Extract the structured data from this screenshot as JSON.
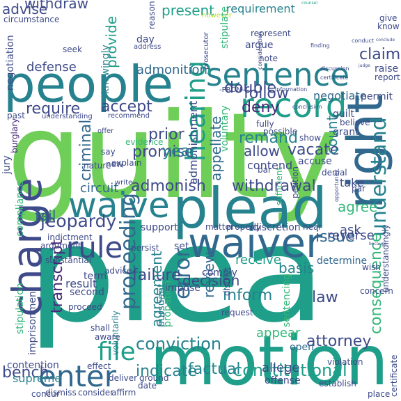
{
  "word_cloud": {
    "palette": {
      "background": "#ffffff",
      "yellow_green": "#b5de2b",
      "light_green": "#6ece58",
      "mid_green": "#35b779",
      "teal": "#1f9e89",
      "blue_teal": "#26828e",
      "steel_blue": "#31688e",
      "indigo": "#3e4a89",
      "deep_purple": "#482878",
      "dark_purple": "#440154",
      "yellow": "#dde318"
    },
    "words": [
      {
        "text": "plea",
        "color": "#1f9e89"
      },
      {
        "text": "guilty",
        "color": "#6ece58"
      },
      {
        "text": "withdraw",
        "color": "#3e4a89"
      },
      {
        "text": "motion",
        "color": "#1f9e89"
      },
      {
        "text": "plead",
        "color": "#26828e"
      },
      {
        "text": "people",
        "color": "#26828e"
      },
      {
        "text": "right",
        "color": "#31688e"
      },
      {
        "text": "waiver",
        "color": "#31688e"
      },
      {
        "text": "charge",
        "color": "#3e4a89"
      },
      {
        "text": "sentence",
        "color": "#26828e"
      },
      {
        "text": "record",
        "color": "#1f9e89"
      },
      {
        "text": "waive",
        "color": "#26828e"
      },
      {
        "text": "counsel",
        "color": "#1f9e89"
      },
      {
        "text": "rule",
        "color": "#3e4a89"
      },
      {
        "text": "enter",
        "color": "#31688e"
      },
      {
        "text": "file",
        "color": "#1f9e89"
      },
      {
        "text": "hearing",
        "color": "#1f9e89"
      },
      {
        "text": "understand",
        "color": "#26828e"
      },
      {
        "text": "consequence",
        "color": "#35b779"
      },
      {
        "text": "conviction",
        "color": "#26828e"
      },
      {
        "text": "jeopardy",
        "color": "#3e4a89"
      },
      {
        "text": "proceeding",
        "color": "#31688e"
      },
      {
        "text": "admonish",
        "color": "#3e4a89"
      },
      {
        "text": "withdrawal",
        "color": "#3e4a89"
      },
      {
        "text": "error",
        "color": "#31688e"
      },
      {
        "text": "attorney",
        "color": "#3e4a89"
      },
      {
        "text": "constitutional",
        "color": "#1f9e89"
      },
      {
        "text": "factual",
        "color": "#26828e"
      },
      {
        "text": "indicate",
        "color": "#26828e"
      },
      {
        "text": "bench",
        "color": "#3e4a89"
      },
      {
        "text": "decision",
        "color": "#3e4a89"
      },
      {
        "text": "transcript",
        "color": "#482878"
      },
      {
        "text": "double",
        "color": "#3e4a89"
      },
      {
        "text": "judge",
        "color": "#3e4a89"
      },
      {
        "text": "claim",
        "color": "#3e4a89"
      },
      {
        "text": "defense",
        "color": "#3e4a89"
      },
      {
        "text": "require",
        "color": "#3e4a89"
      },
      {
        "text": "accept",
        "color": "#3e4a89"
      },
      {
        "text": "deny",
        "color": "#482878"
      },
      {
        "text": "follow",
        "color": "#3e4a89"
      },
      {
        "text": "allow",
        "color": "#3e4a89"
      },
      {
        "text": "remand",
        "color": "#26828e"
      },
      {
        "text": "vacate",
        "color": "#3e4a89"
      },
      {
        "text": "agree",
        "color": "#35b779"
      },
      {
        "text": "appellate",
        "color": "#31688e"
      },
      {
        "text": "advise",
        "color": "#3e4a89"
      },
      {
        "text": "present",
        "color": "#1f9e89"
      },
      {
        "text": "admonition",
        "color": "#31688e"
      },
      {
        "text": "admonishment",
        "color": "#3e4a89"
      },
      {
        "text": "promise",
        "color": "#3e4a89"
      },
      {
        "text": "prior",
        "color": "#3e4a89"
      },
      {
        "text": "year",
        "color": "#26828e"
      },
      {
        "text": "criminal",
        "color": "#31688e"
      },
      {
        "text": "circuit",
        "color": "#31688e"
      },
      {
        "text": "fail",
        "color": "#31688e"
      },
      {
        "text": "failure",
        "color": "#3e4a89"
      },
      {
        "text": "issue",
        "color": "#31688e"
      },
      {
        "text": "agreement",
        "color": "#26828e"
      },
      {
        "text": "review",
        "color": "#31688e"
      },
      {
        "text": "inform",
        "color": "#26828e"
      },
      {
        "text": "receive",
        "color": "#1f9e89"
      },
      {
        "text": "basis",
        "color": "#26828e"
      },
      {
        "text": "law",
        "color": "#3e4a89"
      },
      {
        "text": "reverse",
        "color": "#3e4a89"
      },
      {
        "text": "determine",
        "color": "#31688e"
      },
      {
        "text": "ask",
        "color": "#3e4a89"
      },
      {
        "text": "count",
        "color": "#26828e"
      },
      {
        "text": "voluntary",
        "color": "#35b779"
      },
      {
        "text": "provide",
        "color": "#1f9e89"
      },
      {
        "text": "requirement",
        "color": "#26828e"
      },
      {
        "text": "negotiate",
        "color": "#31688e"
      },
      {
        "text": "certificate",
        "color": "#3e4a89"
      },
      {
        "text": "sentencing",
        "color": "#35b779"
      },
      {
        "text": "pursuant",
        "color": "#26828e"
      },
      {
        "text": "probation",
        "color": "#35b779"
      },
      {
        "text": "appear",
        "color": "#35b779"
      },
      {
        "text": "allege",
        "color": "#3e4a89"
      },
      {
        "text": "offense",
        "color": "#3e4a89"
      },
      {
        "text": "open",
        "color": "#31688e"
      },
      {
        "text": "result",
        "color": "#3e4a89"
      },
      {
        "text": "term",
        "color": "#3e4a89"
      },
      {
        "text": "second",
        "color": "#3e4a89"
      },
      {
        "text": "supreme",
        "color": "#26828e"
      },
      {
        "text": "contention",
        "color": "#3e4a89"
      },
      {
        "text": "stipulation",
        "color": "#35b779"
      },
      {
        "text": "compliance",
        "color": "#35b779"
      },
      {
        "text": "indictment",
        "color": "#3e4a89"
      },
      {
        "text": "jury",
        "color": "#3e4a89"
      },
      {
        "text": "burglary",
        "color": "#482878"
      },
      {
        "text": "negotiation",
        "color": "#3e4a89"
      },
      {
        "text": "circumstance",
        "color": "#3e4a89"
      },
      {
        "text": "knowingly",
        "color": "#26828e"
      },
      {
        "text": "imprisonment",
        "color": "#3e4a89"
      },
      {
        "text": "dismiss",
        "color": "#3e4a89"
      },
      {
        "text": "consider",
        "color": "#3e4a89"
      },
      {
        "text": "affirm",
        "color": "#3e4a89"
      },
      {
        "text": "deliver",
        "color": "#3e4a89"
      },
      {
        "text": "ground",
        "color": "#3e4a89"
      },
      {
        "text": "impose",
        "color": "#3e4a89"
      },
      {
        "text": "comply",
        "color": "#3e4a89"
      },
      {
        "text": "shall",
        "color": "#3e4a89"
      },
      {
        "text": "aware",
        "color": "#3e4a89"
      },
      {
        "text": "voluntarily",
        "color": "#26828e"
      },
      {
        "text": "effect",
        "color": "#3e4a89"
      },
      {
        "text": "date",
        "color": "#3e4a89"
      },
      {
        "text": "place",
        "color": "#3e4a89"
      },
      {
        "text": "establish",
        "color": "#3e4a89"
      },
      {
        "text": "violation",
        "color": "#3e4a89"
      },
      {
        "text": "request",
        "color": "#3e4a89"
      },
      {
        "text": "district",
        "color": "#3e4a89"
      },
      {
        "text": "proceed",
        "color": "#3e4a89"
      },
      {
        "text": "advice",
        "color": "#3e4a89"
      },
      {
        "text": "substantial",
        "color": "#3e4a89"
      },
      {
        "text": "argument",
        "color": "#3e4a89"
      },
      {
        "text": "persist",
        "color": "#3e4a89"
      },
      {
        "text": "set",
        "color": "#3e4a89"
      },
      {
        "text": "matter",
        "color": "#3e4a89"
      },
      {
        "text": "properly",
        "color": "#3e4a89"
      },
      {
        "text": "discretion",
        "color": "#3e4a89"
      },
      {
        "text": "support",
        "color": "#3e4a89"
      },
      {
        "text": "sufficient",
        "color": "#35b779"
      },
      {
        "text": "petition",
        "color": "#3e4a89"
      },
      {
        "text": "hear",
        "color": "#3e4a89"
      },
      {
        "text": "denial",
        "color": "#3e4a89"
      },
      {
        "text": "take",
        "color": "#3e4a89"
      },
      {
        "text": "par",
        "color": "#3e4a89"
      },
      {
        "text": "because",
        "color": "#3e4a89"
      },
      {
        "text": "wish",
        "color": "#3e4a89"
      },
      {
        "text": "concern",
        "color": "#3e4a89"
      },
      {
        "text": "understandingly",
        "color": "#3e4a89"
      },
      {
        "text": "contend",
        "color": "#3e4a89"
      },
      {
        "text": "accuse",
        "color": "#3e4a89"
      },
      {
        "text": "bar",
        "color": "#3e4a89"
      },
      {
        "text": "explain",
        "color": "#3e4a89"
      },
      {
        "text": "nature",
        "color": "#3e4a89"
      },
      {
        "text": "concur",
        "color": "#3e4a89"
      },
      {
        "text": "write",
        "color": "#3e4a89"
      },
      {
        "text": "new",
        "color": "#3e4a89"
      },
      {
        "text": "say",
        "color": "#3e4a89"
      },
      {
        "text": "offer",
        "color": "#3e4a89"
      },
      {
        "text": "recommend",
        "color": "#3e4a89"
      },
      {
        "text": "understanding",
        "color": "#3e4a89"
      },
      {
        "text": "past",
        "color": "#3e4a89"
      },
      {
        "text": "evidence",
        "color": "#35b779"
      },
      {
        "text": "fully",
        "color": "#3e4a89"
      },
      {
        "text": "possible",
        "color": "#3e4a89"
      },
      {
        "text": "show",
        "color": "#3e4a89"
      },
      {
        "text": "grant",
        "color": "#3e4a89"
      },
      {
        "text": "believe",
        "color": "#3e4a89"
      },
      {
        "text": "guilt",
        "color": "#3e4a89"
      },
      {
        "text": "permit",
        "color": "#3e4a89"
      },
      {
        "text": "report",
        "color": "#3e4a89"
      },
      {
        "text": "raise",
        "color": "#3e4a89"
      },
      {
        "text": "conclude",
        "color": "#3e4a89"
      },
      {
        "text": "know",
        "color": "#3e4a89"
      },
      {
        "text": "give",
        "color": "#3e4a89"
      },
      {
        "text": "note",
        "color": "#3e4a89"
      },
      {
        "text": "argue",
        "color": "#3e4a89"
      },
      {
        "text": "represent",
        "color": "#3e4a89"
      },
      {
        "text": "stipulate",
        "color": "#35b779"
      },
      {
        "text": "however",
        "color": "#b5de2b"
      },
      {
        "text": "prosecutor",
        "color": "#3e4a89"
      },
      {
        "text": "reason",
        "color": "#3e4a89"
      },
      {
        "text": "day",
        "color": "#3e4a89"
      },
      {
        "text": "address",
        "color": "#3e4a89"
      },
      {
        "text": "seek",
        "color": "#3e4a89"
      },
      {
        "text": "-PRON-",
        "color": "#3e4a89"
      },
      {
        "text": "information",
        "color": "#3e4a89"
      },
      {
        "text": "consideration",
        "color": "#3e4a89"
      },
      {
        "text": "discussion",
        "color": "#3e4a89"
      },
      {
        "text": "certificate",
        "color": "#3e4a89"
      },
      {
        "text": "opportunity",
        "color": "#3e4a89"
      },
      {
        "text": "conclusion",
        "color": "#3e4a89"
      },
      {
        "text": "conduct",
        "color": "#3e4a89"
      },
      {
        "text": "finding",
        "color": "#3e4a89"
      }
    ]
  }
}
